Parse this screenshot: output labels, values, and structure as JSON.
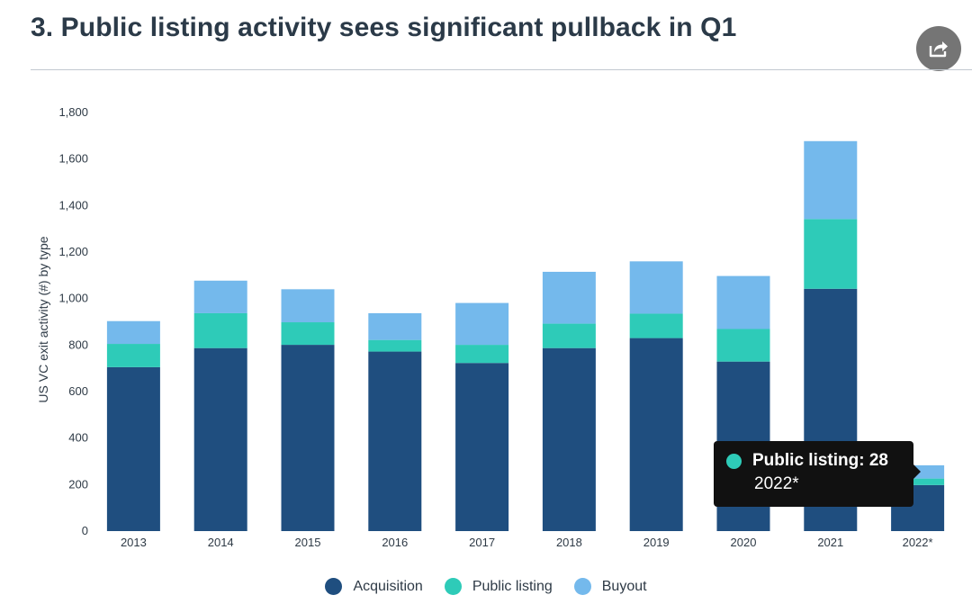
{
  "header": {
    "title": "3. Public listing activity sees significant pullback in Q1",
    "share_icon": "share-icon"
  },
  "colors": {
    "acquisition": "#1f4e7f",
    "public_listing": "#2ecbb8",
    "buyout": "#74b9ec"
  },
  "chart_data": {
    "type": "bar",
    "stacked": true,
    "title": "3. Public listing activity sees significant pullback in Q1",
    "xlabel": "",
    "ylabel": "US VC exit activity (#) by type",
    "ylim": [
      0,
      1800
    ],
    "yticks": [
      0,
      200,
      400,
      600,
      800,
      1000,
      1200,
      1400,
      1600,
      1800
    ],
    "ytick_labels": [
      "0",
      "200",
      "400",
      "600",
      "800",
      "1,000",
      "1,200",
      "1,400",
      "1,600",
      "1,800"
    ],
    "categories": [
      "2013",
      "2014",
      "2015",
      "2016",
      "2017",
      "2018",
      "2019",
      "2020",
      "2021",
      "2022*"
    ],
    "series": [
      {
        "name": "Acquisition",
        "values": [
          705,
          787,
          801,
          772,
          723,
          787,
          830,
          729,
          1042,
          198
        ]
      },
      {
        "name": "Public listing",
        "values": [
          100,
          150,
          97,
          50,
          78,
          105,
          105,
          140,
          300,
          28
        ]
      },
      {
        "name": "Buyout",
        "values": [
          98,
          140,
          142,
          115,
          180,
          223,
          225,
          228,
          335,
          57
        ]
      }
    ],
    "grid": false,
    "legend": "bottom-center"
  },
  "tooltip": {
    "label": "Public listing: 28",
    "category": "2022*"
  }
}
